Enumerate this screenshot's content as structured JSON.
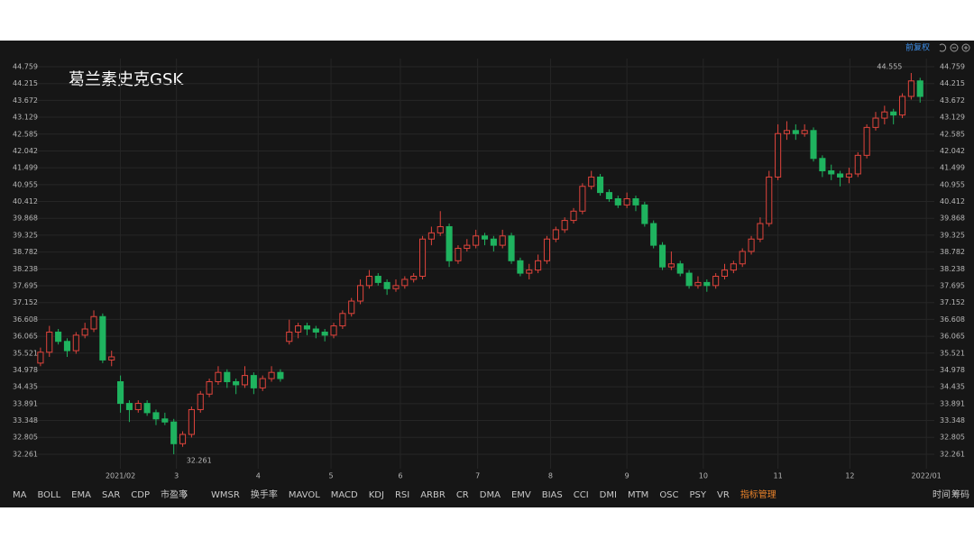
{
  "chart_data": {
    "type": "candlestick",
    "title": "葛兰素史克GSK",
    "adjust_mode": "前复权",
    "up_color": "#e0443c",
    "down_color": "#1fb35f",
    "grid": true,
    "ylim": [
      31.94,
      45.02
    ],
    "yticks": [
      44.759,
      44.215,
      43.672,
      43.129,
      42.585,
      42.042,
      41.499,
      40.955,
      40.412,
      39.868,
      39.325,
      38.782,
      38.238,
      37.695,
      37.152,
      36.608,
      36.065,
      35.521,
      34.978,
      34.435,
      33.891,
      33.348,
      32.805,
      32.261
    ],
    "xlim": [
      -0.6,
      100.6
    ],
    "xticks": [
      {
        "value": 9,
        "label": "2021/02"
      },
      {
        "value": 15.3,
        "label": "3"
      },
      {
        "value": 24.5,
        "label": "4"
      },
      {
        "value": 32.7,
        "label": "5"
      },
      {
        "value": 40.5,
        "label": "6"
      },
      {
        "value": 49.2,
        "label": "7"
      },
      {
        "value": 57.4,
        "label": "8"
      },
      {
        "value": 66,
        "label": "9"
      },
      {
        "value": 74.6,
        "label": "10"
      },
      {
        "value": 83,
        "label": "11"
      },
      {
        "value": 91.1,
        "label": "12"
      },
      {
        "value": 99.7,
        "label": "2022/01"
      }
    ],
    "high_label": 44.555,
    "low_label": 32.261,
    "ohlc": [
      [
        35.2,
        35.7,
        35.1,
        35.55
      ],
      [
        35.55,
        36.4,
        35.4,
        36.2
      ],
      [
        36.2,
        36.3,
        35.8,
        35.9
      ],
      [
        35.9,
        36.0,
        35.4,
        35.6
      ],
      [
        35.6,
        36.2,
        35.5,
        36.1
      ],
      [
        36.1,
        36.5,
        36.0,
        36.3
      ],
      [
        36.3,
        36.9,
        36.2,
        36.7
      ],
      [
        36.7,
        36.8,
        35.2,
        35.3
      ],
      [
        35.3,
        35.6,
        35.1,
        35.4
      ],
      [
        34.6,
        34.8,
        33.6,
        33.9
      ],
      [
        33.9,
        34.0,
        33.3,
        33.7
      ],
      [
        33.7,
        34.0,
        33.6,
        33.9
      ],
      [
        33.9,
        34.0,
        33.5,
        33.6
      ],
      [
        33.6,
        33.7,
        33.2,
        33.4
      ],
      [
        33.4,
        33.6,
        33.2,
        33.3
      ],
      [
        33.3,
        33.4,
        32.261,
        32.6
      ],
      [
        32.6,
        33.0,
        32.5,
        32.9
      ],
      [
        32.9,
        33.8,
        32.8,
        33.7
      ],
      [
        33.7,
        34.3,
        33.6,
        34.2
      ],
      [
        34.2,
        34.7,
        34.1,
        34.6
      ],
      [
        34.6,
        35.1,
        34.5,
        34.9
      ],
      [
        34.9,
        35.0,
        34.4,
        34.6
      ],
      [
        34.6,
        34.7,
        34.2,
        34.5
      ],
      [
        34.5,
        35.1,
        34.4,
        34.8
      ],
      [
        34.8,
        34.9,
        34.2,
        34.4
      ],
      [
        34.4,
        34.8,
        34.3,
        34.7
      ],
      [
        34.7,
        35.1,
        34.6,
        34.9
      ],
      [
        34.9,
        35.0,
        34.6,
        34.7
      ],
      [
        35.9,
        36.6,
        35.8,
        36.2
      ],
      [
        36.2,
        36.5,
        36.0,
        36.4
      ],
      [
        36.4,
        36.5,
        36.1,
        36.3
      ],
      [
        36.3,
        36.4,
        36.0,
        36.2
      ],
      [
        36.2,
        36.3,
        35.9,
        36.1
      ],
      [
        36.1,
        36.5,
        36.0,
        36.4
      ],
      [
        36.4,
        36.9,
        36.3,
        36.8
      ],
      [
        36.8,
        37.3,
        36.7,
        37.2
      ],
      [
        37.2,
        37.9,
        37.1,
        37.7
      ],
      [
        37.7,
        38.2,
        37.6,
        38.0
      ],
      [
        38.0,
        38.1,
        37.7,
        37.8
      ],
      [
        37.8,
        37.9,
        37.4,
        37.6
      ],
      [
        37.6,
        37.9,
        37.5,
        37.7
      ],
      [
        37.7,
        38.0,
        37.6,
        37.9
      ],
      [
        37.9,
        38.1,
        37.8,
        38.0
      ],
      [
        38.0,
        39.3,
        37.9,
        39.2
      ],
      [
        39.2,
        39.6,
        39.0,
        39.4
      ],
      [
        39.4,
        40.1,
        39.3,
        39.6
      ],
      [
        39.6,
        39.7,
        38.3,
        38.5
      ],
      [
        38.5,
        39.0,
        38.4,
        38.9
      ],
      [
        38.9,
        39.2,
        38.8,
        39.0
      ],
      [
        39.0,
        39.5,
        38.9,
        39.3
      ],
      [
        39.3,
        39.4,
        39.0,
        39.2
      ],
      [
        39.2,
        39.3,
        38.8,
        39.0
      ],
      [
        39.0,
        39.5,
        38.9,
        39.3
      ],
      [
        39.3,
        39.4,
        38.4,
        38.5
      ],
      [
        38.5,
        38.6,
        38.0,
        38.1
      ],
      [
        38.1,
        38.4,
        37.9,
        38.2
      ],
      [
        38.2,
        38.7,
        38.1,
        38.5
      ],
      [
        38.5,
        39.3,
        38.4,
        39.2
      ],
      [
        39.2,
        39.6,
        39.1,
        39.5
      ],
      [
        39.5,
        39.9,
        39.4,
        39.8
      ],
      [
        39.8,
        40.2,
        39.7,
        40.1
      ],
      [
        40.1,
        41.0,
        40.0,
        40.9
      ],
      [
        40.9,
        41.4,
        40.8,
        41.2
      ],
      [
        41.2,
        41.3,
        40.6,
        40.7
      ],
      [
        40.7,
        40.8,
        40.4,
        40.5
      ],
      [
        40.5,
        40.6,
        40.2,
        40.3
      ],
      [
        40.3,
        40.7,
        40.2,
        40.5
      ],
      [
        40.5,
        40.6,
        40.1,
        40.3
      ],
      [
        40.3,
        40.4,
        39.6,
        39.7
      ],
      [
        39.7,
        39.8,
        38.9,
        39.0
      ],
      [
        39.0,
        39.1,
        38.2,
        38.3
      ],
      [
        38.3,
        38.8,
        38.2,
        38.4
      ],
      [
        38.4,
        38.5,
        38.0,
        38.1
      ],
      [
        38.1,
        38.2,
        37.6,
        37.7
      ],
      [
        37.7,
        38.0,
        37.6,
        37.8
      ],
      [
        37.8,
        37.9,
        37.5,
        37.7
      ],
      [
        37.7,
        38.1,
        37.6,
        38.0
      ],
      [
        38.0,
        38.4,
        37.9,
        38.2
      ],
      [
        38.2,
        38.5,
        38.1,
        38.4
      ],
      [
        38.4,
        38.9,
        38.3,
        38.8
      ],
      [
        38.8,
        39.3,
        38.7,
        39.2
      ],
      [
        39.2,
        39.9,
        39.1,
        39.7
      ],
      [
        39.7,
        41.4,
        39.6,
        41.2
      ],
      [
        41.2,
        42.9,
        41.1,
        42.6
      ],
      [
        42.6,
        43.0,
        42.4,
        42.7
      ],
      [
        42.7,
        42.9,
        42.4,
        42.6
      ],
      [
        42.6,
        42.9,
        42.5,
        42.7
      ],
      [
        42.7,
        42.8,
        41.7,
        41.8
      ],
      [
        41.8,
        41.9,
        41.2,
        41.4
      ],
      [
        41.4,
        41.6,
        41.1,
        41.3
      ],
      [
        41.3,
        41.4,
        40.9,
        41.2
      ],
      [
        41.2,
        41.5,
        41.0,
        41.3
      ],
      [
        41.3,
        42.0,
        41.2,
        41.9
      ],
      [
        41.9,
        42.9,
        41.8,
        42.8
      ],
      [
        42.8,
        43.3,
        42.7,
        43.1
      ],
      [
        43.1,
        43.5,
        42.9,
        43.3
      ],
      [
        43.3,
        43.4,
        42.9,
        43.2
      ],
      [
        43.2,
        43.9,
        43.1,
        43.8
      ],
      [
        43.8,
        44.555,
        43.7,
        44.3
      ],
      [
        44.3,
        44.4,
        43.6,
        43.8
      ]
    ]
  },
  "toolbar": {
    "indicators": [
      "MA",
      "BOLL",
      "EMA",
      "SAR",
      "CDP",
      "市盈率",
      "WMSR",
      "换手率",
      "MAVOL",
      "MACD",
      "KDJ",
      "RSI",
      "ARBR",
      "CR",
      "DMA",
      "EMV",
      "BIAS",
      "CCI",
      "DMI",
      "MTM",
      "OSC",
      "PSY",
      "VR"
    ],
    "manage": "指标管理",
    "right": [
      "时间",
      "筹码"
    ]
  }
}
